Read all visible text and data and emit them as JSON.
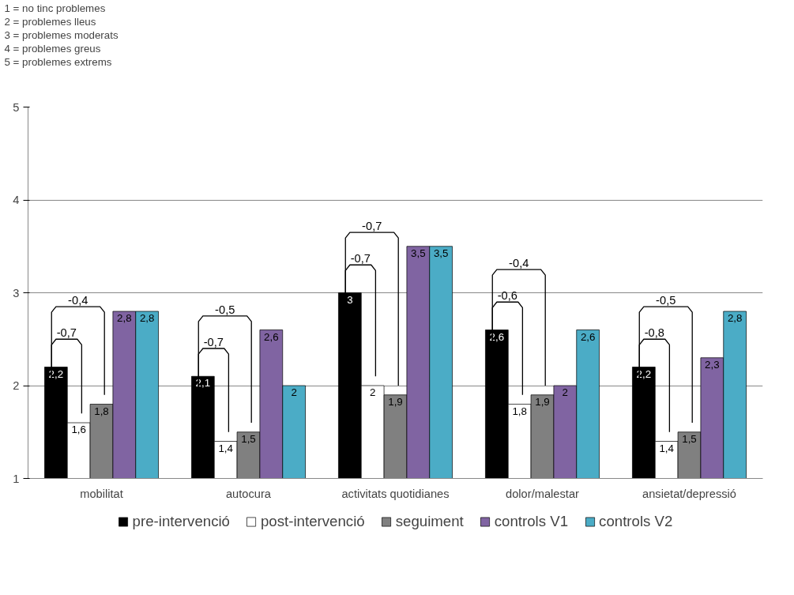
{
  "chart_data": {
    "type": "bar",
    "categories": [
      "mobilitat",
      "autocura",
      "activitats quotidianes",
      "dolor/malestar",
      "ansietat/depressió"
    ],
    "series": [
      {
        "name": "pre-intervenció",
        "color": "#000000",
        "values": [
          2.2,
          2.1,
          3,
          2.6,
          2.2
        ],
        "value_labels": [
          "2,2",
          "2,1",
          "3",
          "2,6",
          "2,2"
        ]
      },
      {
        "name": "post-intervenció",
        "color": "#ffffff",
        "values": [
          1.6,
          1.4,
          2,
          1.8,
          1.4
        ],
        "value_labels": [
          "1,6",
          "1,4",
          "2",
          "1,8",
          "1,4"
        ]
      },
      {
        "name": "seguiment",
        "color": "#808080",
        "values": [
          1.8,
          1.5,
          1.9,
          1.9,
          1.5
        ],
        "value_labels": [
          "1,8",
          "1,5",
          "1,9",
          "1,9",
          "1,5"
        ]
      },
      {
        "name": "controls V1",
        "color": "#8064a2",
        "values": [
          2.8,
          2.6,
          3.5,
          2,
          2.3
        ],
        "value_labels": [
          "2,8",
          "2,6",
          "3,5",
          "2",
          "2,3"
        ]
      },
      {
        "name": "controls V2",
        "color": "#4bacc6",
        "values": [
          2.8,
          2,
          3.5,
          2.6,
          2.8
        ],
        "value_labels": [
          "2,8",
          "2",
          "3,5",
          "2,6",
          "2,8"
        ]
      }
    ],
    "ylim": [
      1,
      5
    ],
    "yticks": [
      1,
      2,
      3,
      4,
      5
    ],
    "grid": "y",
    "legend": "bottom",
    "annotations": [
      "1 = no tinc problemes",
      "2 = problemes lleus",
      "3 = problemes moderats",
      "4 = problemes greus",
      "5 = problemes extrems",
      "-0,7",
      "-0,4",
      "-0,7",
      "-0,5",
      "-0,7",
      "-0,7",
      "-0,6",
      "-0,4",
      "-0,8",
      "-0,5"
    ]
  }
}
